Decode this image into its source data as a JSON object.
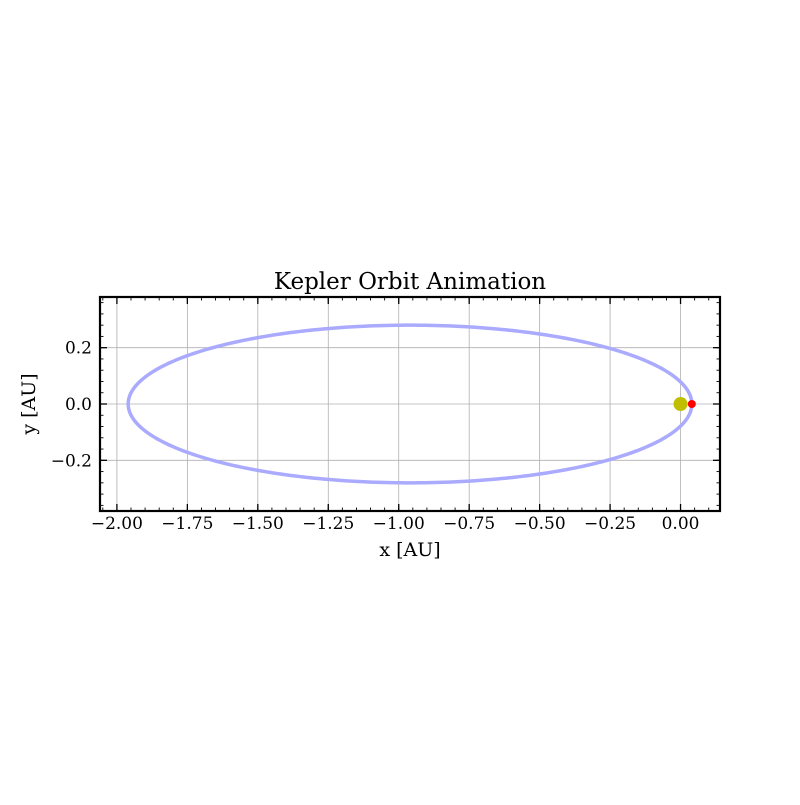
{
  "chart_data": {
    "type": "line",
    "title": "Kepler Orbit Animation",
    "xlabel": "x [AU]",
    "ylabel": "y [AU]",
    "xlim": [
      -2.06,
      0.14
    ],
    "ylim": [
      -0.38,
      0.38
    ],
    "xticks": [
      -2.0,
      -1.75,
      -1.5,
      -1.25,
      -1.0,
      -0.75,
      -0.5,
      -0.25,
      0.0
    ],
    "xtick_labels": [
      "−2.00",
      "−1.75",
      "−1.50",
      "−1.25",
      "−1.00",
      "−0.75",
      "−0.50",
      "−0.25",
      "0.00"
    ],
    "yticks": [
      -0.2,
      0.0,
      0.2
    ],
    "ytick_labels": [
      "−0.2",
      "0.0",
      "0.2"
    ],
    "grid": true,
    "orbit": {
      "name": "orbit",
      "center_x": -0.96,
      "center_y": 0.0,
      "semi_major_axis": 1.0,
      "semi_minor_axis": 0.28,
      "color": "#aaaaff"
    },
    "star": {
      "name": "star",
      "x": 0.0,
      "y": 0.0,
      "color": "#bfbf00"
    },
    "planet": {
      "name": "planet",
      "x": 0.04,
      "y": 0.0,
      "color": "#ff0000"
    }
  }
}
